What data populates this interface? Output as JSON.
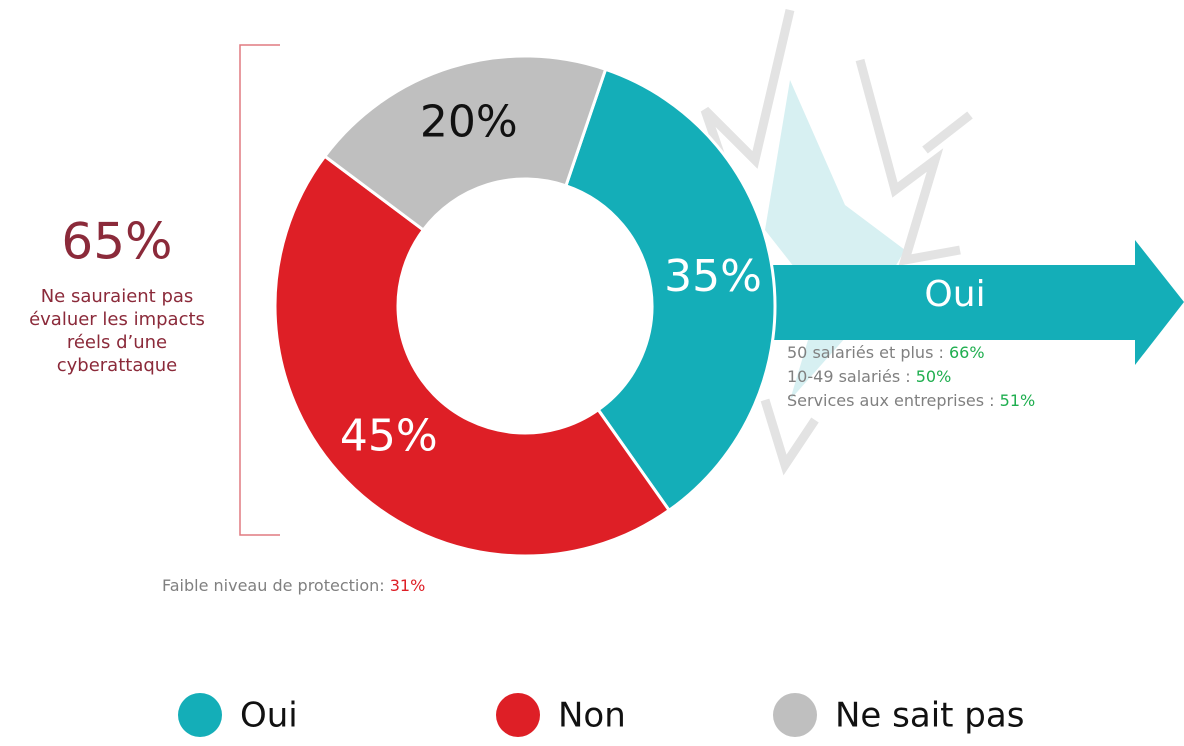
{
  "chart_data": {
    "type": "donut",
    "categories": [
      "Oui",
      "Non",
      "Ne sait pas"
    ],
    "values": [
      35,
      45,
      20
    ],
    "value_labels": [
      "35%",
      "45%",
      "20%"
    ],
    "colors": [
      "#14aeb8",
      "#de1f26",
      "#bfbfbf"
    ],
    "legend": "bottom"
  },
  "callout": {
    "value": "65%",
    "text": [
      "Ne sauraient pas",
      "évaluer les impacts",
      "réels d’une",
      "cyberattaque"
    ]
  },
  "arrow_label": "Oui",
  "details": [
    {
      "label": "50 salariés et plus : ",
      "value": "66%"
    },
    {
      "label": "10-49 salariés : ",
      "value": "50%"
    },
    {
      "label": "Services aux entreprises : ",
      "value": "51%"
    }
  ],
  "footnote": {
    "label": "Faible niveau de protection: ",
    "value": "31%"
  }
}
